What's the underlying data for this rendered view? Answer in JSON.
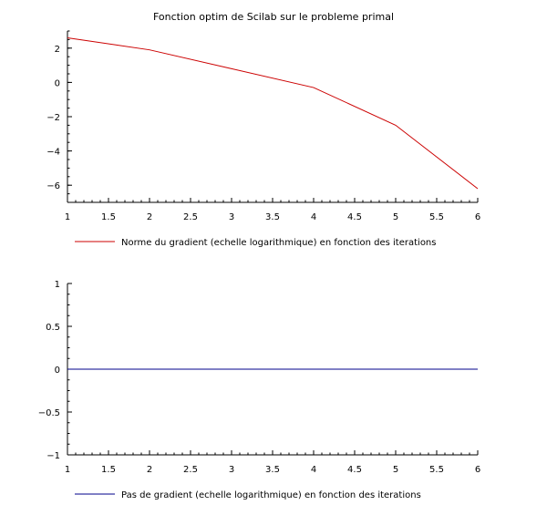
{
  "chart_data": [
    {
      "type": "line",
      "title": "Fonction optim de Scilab sur le probleme primal",
      "xlabel": "",
      "ylabel": "",
      "xlim": [
        1,
        6
      ],
      "ylim": [
        -7,
        3
      ],
      "x_ticks": [
        "1",
        "1.5",
        "2",
        "2.5",
        "3",
        "3.5",
        "4",
        "4.5",
        "5",
        "5.5",
        "6"
      ],
      "y_ticks": [
        "2",
        "0",
        "−2",
        "−4",
        "−6"
      ],
      "grid": false,
      "legend_position": "bottom-left",
      "series": [
        {
          "name": "Norme du gradient (echelle logarithmique) en fonction des iterations",
          "color": "#cc0000",
          "x": [
            1,
            2,
            3,
            4,
            5,
            6
          ],
          "y": [
            2.6,
            1.9,
            0.8,
            -0.3,
            -2.5,
            -6.2
          ]
        }
      ]
    },
    {
      "type": "line",
      "title": "",
      "xlabel": "",
      "ylabel": "",
      "xlim": [
        1,
        6
      ],
      "ylim": [
        -1,
        1
      ],
      "x_ticks": [
        "1",
        "1.5",
        "2",
        "2.5",
        "3",
        "3.5",
        "4",
        "4.5",
        "5",
        "5.5",
        "6"
      ],
      "y_ticks": [
        "1",
        "0.5",
        "0",
        "−0.5",
        "−1"
      ],
      "grid": false,
      "legend_position": "bottom-left",
      "series": [
        {
          "name": "Pas de gradient (echelle logarithmique) en fonction des iterations",
          "color": "#00008b",
          "x": [
            1,
            2,
            3,
            4,
            5,
            6
          ],
          "y": [
            0,
            0,
            0,
            0,
            0,
            0
          ]
        }
      ]
    }
  ]
}
